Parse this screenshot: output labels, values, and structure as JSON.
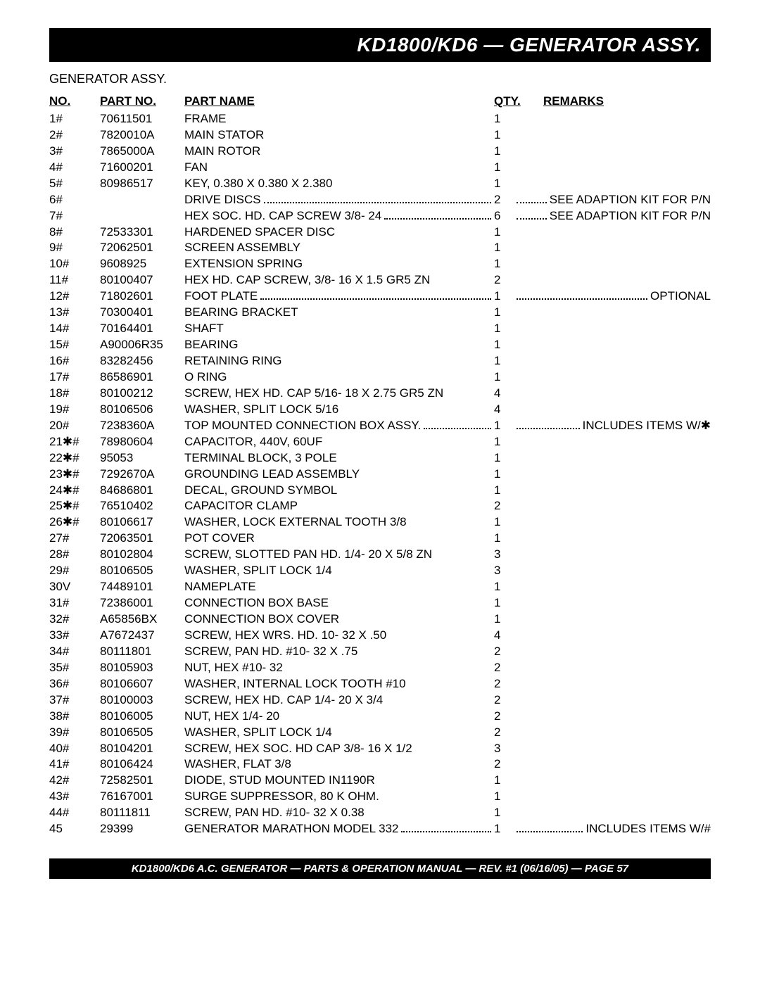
{
  "header_title": "KD1800/KD6 — GENERATOR ASSY.",
  "subtitle": "GENERATOR ASSY.",
  "columns": {
    "no": "NO.",
    "part_no": "PART NO.",
    "part_name": "PART NAME",
    "qty": "QTY.",
    "remarks": "REMARKS"
  },
  "rows": [
    {
      "no": "1#",
      "pn": "70611501",
      "name": "FRAME",
      "qty": "1",
      "remarks": "",
      "dotted": false
    },
    {
      "no": "2#",
      "pn": "7820010A",
      "name": "MAIN STATOR",
      "qty": "1",
      "remarks": "",
      "dotted": false
    },
    {
      "no": "3#",
      "pn": "7865000A",
      "name": "MAIN ROTOR",
      "qty": "1",
      "remarks": "",
      "dotted": false
    },
    {
      "no": "4#",
      "pn": "71600201",
      "name": "FAN",
      "qty": "1",
      "remarks": "",
      "dotted": false
    },
    {
      "no": "5#",
      "pn": "80986517",
      "name": "KEY, 0.380 X 0.380 X 2.380",
      "qty": "1",
      "remarks": "",
      "dotted": false
    },
    {
      "no": "6#",
      "pn": "",
      "name": "DRIVE DISCS",
      "qty": "2",
      "remarks": "SEE ADAPTION KIT FOR P/N",
      "dotted": true
    },
    {
      "no": "7#",
      "pn": "",
      "name": "HEX SOC. HD. CAP SCREW 3/8- 24",
      "qty": "6",
      "remarks": "SEE ADAPTION KIT FOR P/N",
      "dotted": true
    },
    {
      "no": "8#",
      "pn": "72533301",
      "name": "HARDENED SPACER DISC",
      "qty": "1",
      "remarks": "",
      "dotted": false
    },
    {
      "no": "9#",
      "pn": "72062501",
      "name": "SCREEN ASSEMBLY",
      "qty": "1",
      "remarks": "",
      "dotted": false
    },
    {
      "no": "10#",
      "pn": "9608925",
      "name": "EXTENSION SPRING",
      "qty": "1",
      "remarks": "",
      "dotted": false
    },
    {
      "no": "11#",
      "pn": "80100407",
      "name": "HEX HD. CAP SCREW, 3/8- 16 X 1.5 GR5 ZN",
      "qty": "2",
      "remarks": "",
      "dotted": false
    },
    {
      "no": "12#",
      "pn": "71802601",
      "name": "FOOT PLATE",
      "qty": "1",
      "remarks": "OPTIONAL",
      "dotted": true
    },
    {
      "no": "13#",
      "pn": "70300401",
      "name": "BEARING BRACKET",
      "qty": "1",
      "remarks": "",
      "dotted": false
    },
    {
      "no": "14#",
      "pn": "70164401",
      "name": "SHAFT",
      "qty": "1",
      "remarks": "",
      "dotted": false
    },
    {
      "no": "15#",
      "pn": "A90006R35",
      "name": "BEARING",
      "qty": "1",
      "remarks": "",
      "dotted": false
    },
    {
      "no": "16#",
      "pn": "83282456",
      "name": "RETAINING RING",
      "qty": "1",
      "remarks": "",
      "dotted": false
    },
    {
      "no": "17#",
      "pn": "86586901",
      "name": "O RING",
      "qty": "1",
      "remarks": "",
      "dotted": false
    },
    {
      "no": "18#",
      "pn": "80100212",
      "name": "SCREW, HEX HD. CAP 5/16- 18 X 2.75 GR5 ZN",
      "qty": "4",
      "remarks": "",
      "dotted": false
    },
    {
      "no": "19#",
      "pn": "80106506",
      "name": "WASHER, SPLIT LOCK 5/16",
      "qty": "4",
      "remarks": "",
      "dotted": false
    },
    {
      "no": "20#",
      "pn": "7238360A",
      "name": "TOP MOUNTED CONNECTION BOX ASSY.",
      "qty": "1",
      "remarks": "INCLUDES ITEMS W/✱",
      "dotted": true
    },
    {
      "no": "21✱#",
      "pn": "78980604",
      "name": "CAPACITOR, 440V, 60UF",
      "qty": "1",
      "remarks": "",
      "dotted": false
    },
    {
      "no": "22✱#",
      "pn": "95053",
      "name": "TERMINAL BLOCK, 3 POLE",
      "qty": "1",
      "remarks": "",
      "dotted": false
    },
    {
      "no": "23✱#",
      "pn": "7292670A",
      "name": "GROUNDING LEAD ASSEMBLY",
      "qty": "1",
      "remarks": "",
      "dotted": false
    },
    {
      "no": "24✱#",
      "pn": "84686801",
      "name": "DECAL, GROUND SYMBOL",
      "qty": "1",
      "remarks": "",
      "dotted": false
    },
    {
      "no": "25✱#",
      "pn": "76510402",
      "name": "CAPACITOR CLAMP",
      "qty": "2",
      "remarks": "",
      "dotted": false
    },
    {
      "no": "26✱#",
      "pn": "80106617",
      "name": "WASHER, LOCK EXTERNAL TOOTH 3/8",
      "qty": "1",
      "remarks": "",
      "dotted": false
    },
    {
      "no": "27#",
      "pn": "72063501",
      "name": "POT COVER",
      "qty": "1",
      "remarks": "",
      "dotted": false
    },
    {
      "no": "28#",
      "pn": "80102804",
      "name": "SCREW, SLOTTED PAN HD. 1/4- 20 X 5/8 ZN",
      "qty": "3",
      "remarks": "",
      "dotted": false
    },
    {
      "no": "29#",
      "pn": "80106505",
      "name": "WASHER, SPLIT LOCK 1/4",
      "qty": "3",
      "remarks": "",
      "dotted": false
    },
    {
      "no": "30V",
      "pn": "74489101",
      "name": "NAMEPLATE",
      "qty": "1",
      "remarks": "",
      "dotted": false
    },
    {
      "no": "31#",
      "pn": "72386001",
      "name": "CONNECTION BOX BASE",
      "qty": "1",
      "remarks": "",
      "dotted": false
    },
    {
      "no": "32#",
      "pn": "A65856BX",
      "name": "CONNECTION BOX COVER",
      "qty": "1",
      "remarks": "",
      "dotted": false
    },
    {
      "no": "33#",
      "pn": "A7672437",
      "name": "SCREW, HEX WRS. HD. 10- 32 X .50",
      "qty": "4",
      "remarks": "",
      "dotted": false
    },
    {
      "no": "34#",
      "pn": "80111801",
      "name": "SCREW, PAN HD. #10- 32 X .75",
      "qty": "2",
      "remarks": "",
      "dotted": false
    },
    {
      "no": "35#",
      "pn": "80105903",
      "name": "NUT, HEX #10- 32",
      "qty": "2",
      "remarks": "",
      "dotted": false
    },
    {
      "no": "36#",
      "pn": "80106607",
      "name": "WASHER, INTERNAL LOCK TOOTH #10",
      "qty": "2",
      "remarks": "",
      "dotted": false
    },
    {
      "no": "37#",
      "pn": "80100003",
      "name": "SCREW, HEX HD. CAP 1/4- 20 X 3/4",
      "qty": "2",
      "remarks": "",
      "dotted": false
    },
    {
      "no": "38#",
      "pn": "80106005",
      "name": "NUT, HEX 1/4- 20",
      "qty": "2",
      "remarks": "",
      "dotted": false
    },
    {
      "no": "39#",
      "pn": "80106505",
      "name": "WASHER, SPLIT LOCK 1/4",
      "qty": "2",
      "remarks": "",
      "dotted": false
    },
    {
      "no": "40#",
      "pn": "80104201",
      "name": "SCREW, HEX SOC. HD CAP 3/8- 16 X 1/2",
      "qty": "3",
      "remarks": "",
      "dotted": false
    },
    {
      "no": "41#",
      "pn": "80106424",
      "name": "WASHER, FLAT 3/8",
      "qty": "2",
      "remarks": "",
      "dotted": false
    },
    {
      "no": "42#",
      "pn": "72582501",
      "name": "DIODE, STUD MOUNTED IN1190R",
      "qty": "1",
      "remarks": "",
      "dotted": false
    },
    {
      "no": "43#",
      "pn": "76167001",
      "name": "SURGE SUPPRESSOR, 80 K OHM.",
      "qty": "1",
      "remarks": "",
      "dotted": false
    },
    {
      "no": "44#",
      "pn": "80111811",
      "name": "SCREW, PAN HD. #10- 32 X 0.38",
      "qty": "1",
      "remarks": "",
      "dotted": false
    },
    {
      "no": "45",
      "pn": "29399",
      "name": "GENERATOR MARATHON MODEL 332",
      "qty": "1",
      "remarks": "INCLUDES  ITEMS W/#",
      "dotted": true
    }
  ],
  "footer": "KD1800/KD6 A.C. GENERATOR — PARTS & OPERATION MANUAL — REV. #1  (06/16/05) — PAGE 57"
}
